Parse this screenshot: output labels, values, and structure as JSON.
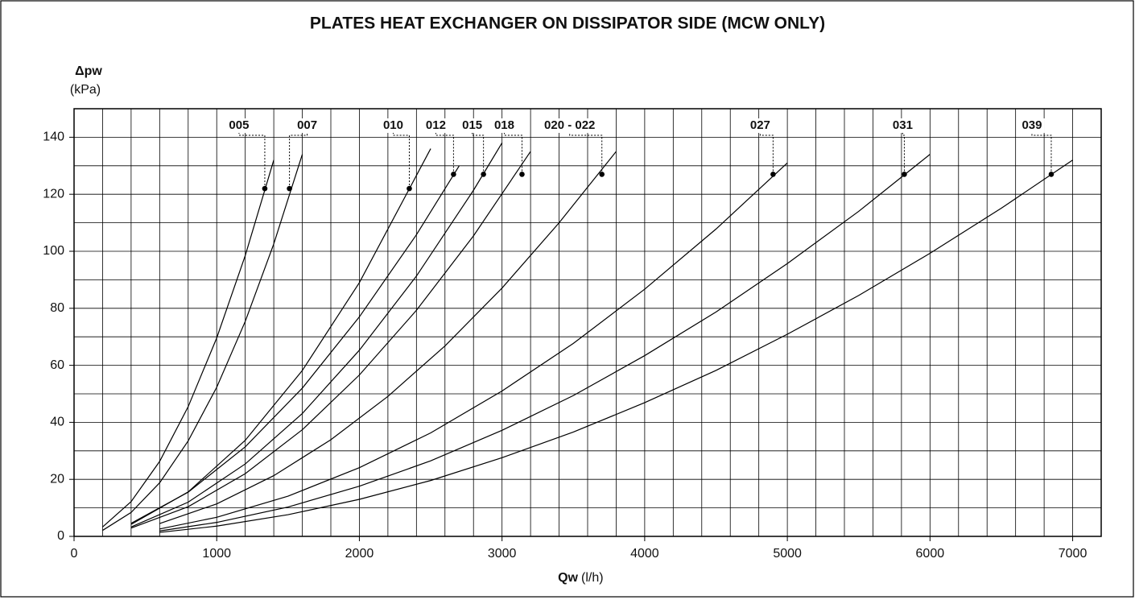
{
  "chart_data": {
    "type": "line",
    "title": "PLATES HEAT EXCHANGER ON DISSIPATOR SIDE (MCW ONLY)",
    "y_label": "Δpw",
    "y_unit": "(kPa)",
    "x_label": "Qw",
    "x_unit": "(l/h)",
    "xlim": [
      0,
      7200
    ],
    "ylim": [
      0,
      150
    ],
    "xticks": [
      0,
      1000,
      2000,
      3000,
      4000,
      5000,
      6000,
      7000
    ],
    "yticks": [
      0,
      20,
      40,
      60,
      80,
      100,
      120,
      140
    ],
    "xgrid_step": 200,
    "ygrid_step": 10,
    "grid": true,
    "color": "#000000",
    "series": [
      {
        "name": "005",
        "x": [
          200,
          400,
          600,
          800,
          1000,
          1200,
          1400
        ],
        "values": [
          3.3,
          12.2,
          26.3,
          45.5,
          69.6,
          98.5,
          132
        ],
        "marker": [
          1337,
          122
        ]
      },
      {
        "name": "007",
        "x": [
          200,
          400,
          600,
          800,
          1000,
          1200,
          1400,
          1600
        ],
        "values": [
          2.1,
          8.4,
          18.8,
          33.5,
          52.3,
          75.4,
          102.6,
          134
        ],
        "marker": [
          1510,
          122
        ]
      },
      {
        "name": "010",
        "x": [
          400,
          800,
          1200,
          1600,
          2000,
          2500
        ],
        "values": [
          4.2,
          15.6,
          33.7,
          58.2,
          89,
          136
        ],
        "marker": [
          2350,
          122
        ]
      },
      {
        "name": "012",
        "x": [
          400,
          800,
          1200,
          1600,
          2000,
          2400,
          2700
        ],
        "values": [
          4.6,
          15.5,
          31.4,
          52,
          77,
          105.8,
          130
        ],
        "marker": [
          2660,
          127
        ]
      },
      {
        "name": "015",
        "x": [
          400,
          800,
          1200,
          1600,
          2000,
          2400,
          2800,
          3000
        ],
        "values": [
          3.3,
          12,
          25.4,
          43.1,
          65.3,
          91.3,
          121.4,
          138
        ],
        "marker": [
          2870,
          127
        ]
      },
      {
        "name": "018",
        "x": [
          400,
          800,
          1200,
          1600,
          2000,
          2400,
          2800,
          3200
        ],
        "values": [
          2.9,
          10.4,
          22,
          37.4,
          56.6,
          79.3,
          105.4,
          135
        ],
        "marker": [
          3140,
          127
        ]
      },
      {
        "name": "020 - 022",
        "x": [
          600,
          1000,
          1400,
          1800,
          2200,
          2600,
          3000,
          3400,
          3800
        ],
        "values": [
          4.5,
          11.4,
          21.3,
          33.9,
          49.1,
          66.8,
          87.1,
          110,
          135
        ],
        "marker": [
          3700,
          127
        ]
      },
      {
        "name": "027",
        "x": [
          600,
          1000,
          1500,
          2000,
          2500,
          3000,
          3500,
          4000,
          4500,
          5000
        ],
        "values": [
          2.6,
          6.7,
          14.1,
          24.1,
          36.3,
          51,
          67.7,
          86.7,
          107.8,
          131
        ],
        "marker": [
          4900,
          127
        ]
      },
      {
        "name": "031",
        "x": [
          600,
          1000,
          1500,
          2000,
          2500,
          3000,
          3500,
          4000,
          4500,
          5000,
          5500,
          6000
        ],
        "values": [
          1.9,
          4.9,
          10.3,
          17.6,
          26.5,
          37.2,
          49.4,
          63.4,
          78.7,
          95.7,
          114,
          134
        ],
        "marker": [
          5820,
          127
        ]
      },
      {
        "name": "039",
        "x": [
          600,
          1000,
          1500,
          2000,
          2500,
          3000,
          3500,
          4000,
          4500,
          5000,
          5500,
          6000,
          6500,
          7000
        ],
        "values": [
          1.4,
          3.6,
          7.6,
          13,
          19.6,
          27.6,
          36.6,
          46.9,
          58.2,
          70.9,
          84.5,
          99.3,
          115.1,
          132
        ],
        "marker": [
          6850,
          127
        ]
      }
    ]
  }
}
